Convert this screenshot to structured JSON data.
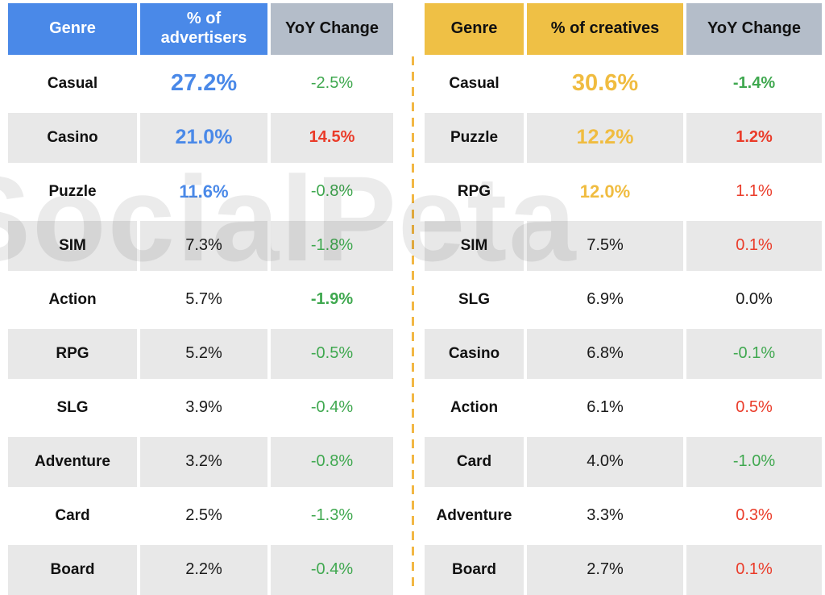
{
  "colors": {
    "blue": "#4a89e8",
    "gold": "#f0bc40",
    "yellow_header": "#efc045",
    "header_gray": "#b4bdc9",
    "row_gray": "#e8e8e8",
    "green": "#3fa84f",
    "red": "#ea3b29",
    "dash_gold": "#f2b744"
  },
  "watermark": {
    "text": "SocialPeta"
  },
  "left_table": {
    "headers": [
      "Genre",
      "% of advertisers",
      "YoY Change"
    ],
    "rows": [
      {
        "genre": "Casual",
        "value": "27.2%",
        "value_style": "blue xl",
        "yoy": "-2.5%",
        "yoy_style": "green"
      },
      {
        "genre": "Casino",
        "value": "21.0%",
        "value_style": "blue lg",
        "yoy": "14.5%",
        "yoy_style": "red bold"
      },
      {
        "genre": "Puzzle",
        "value": "11.6%",
        "value_style": "blue md",
        "yoy": "-0.8%",
        "yoy_style": "green"
      },
      {
        "genre": "SIM",
        "value": "7.3%",
        "value_style": "",
        "yoy": "-1.8%",
        "yoy_style": "green"
      },
      {
        "genre": "Action",
        "value": "5.7%",
        "value_style": "",
        "yoy": "-1.9%",
        "yoy_style": "green bold"
      },
      {
        "genre": "RPG",
        "value": "5.2%",
        "value_style": "",
        "yoy": "-0.5%",
        "yoy_style": "green"
      },
      {
        "genre": "SLG",
        "value": "3.9%",
        "value_style": "",
        "yoy": "-0.4%",
        "yoy_style": "green"
      },
      {
        "genre": "Adventure",
        "value": "3.2%",
        "value_style": "",
        "yoy": "-0.8%",
        "yoy_style": "green"
      },
      {
        "genre": "Card",
        "value": "2.5%",
        "value_style": "",
        "yoy": "-1.3%",
        "yoy_style": "green"
      },
      {
        "genre": "Board",
        "value": "2.2%",
        "value_style": "",
        "yoy": "-0.4%",
        "yoy_style": "green"
      }
    ]
  },
  "right_table": {
    "headers": [
      "Genre",
      "% of creatives",
      "YoY Change"
    ],
    "rows": [
      {
        "genre": "Casual",
        "value": "30.6%",
        "value_style": "gold xl",
        "yoy": "-1.4%",
        "yoy_style": "green bold"
      },
      {
        "genre": "Puzzle",
        "value": "12.2%",
        "value_style": "gold lg",
        "yoy": "1.2%",
        "yoy_style": "red bold"
      },
      {
        "genre": "RPG",
        "value": "12.0%",
        "value_style": "gold md",
        "yoy": "1.1%",
        "yoy_style": "red"
      },
      {
        "genre": "SIM",
        "value": "7.5%",
        "value_style": "",
        "yoy": "0.1%",
        "yoy_style": "red"
      },
      {
        "genre": "SLG",
        "value": "6.9%",
        "value_style": "",
        "yoy": "0.0%",
        "yoy_style": ""
      },
      {
        "genre": "Casino",
        "value": "6.8%",
        "value_style": "",
        "yoy": "-0.1%",
        "yoy_style": "green"
      },
      {
        "genre": "Action",
        "value": "6.1%",
        "value_style": "",
        "yoy": "0.5%",
        "yoy_style": "red"
      },
      {
        "genre": "Card",
        "value": "4.0%",
        "value_style": "",
        "yoy": "-1.0%",
        "yoy_style": "green"
      },
      {
        "genre": "Adventure",
        "value": "3.3%",
        "value_style": "",
        "yoy": "0.3%",
        "yoy_style": "red"
      },
      {
        "genre": "Board",
        "value": "2.7%",
        "value_style": "",
        "yoy": "0.1%",
        "yoy_style": "red"
      }
    ]
  },
  "chart_data": [
    {
      "type": "table",
      "title": "% of advertisers by genre",
      "columns": [
        "Genre",
        "% of advertisers",
        "YoY Change"
      ],
      "rows": [
        [
          "Casual",
          27.2,
          -2.5
        ],
        [
          "Casino",
          21.0,
          14.5
        ],
        [
          "Puzzle",
          11.6,
          -0.8
        ],
        [
          "SIM",
          7.3,
          -1.8
        ],
        [
          "Action",
          5.7,
          -1.9
        ],
        [
          "RPG",
          5.2,
          -0.5
        ],
        [
          "SLG",
          3.9,
          -0.4
        ],
        [
          "Adventure",
          3.2,
          -0.8
        ],
        [
          "Card",
          2.5,
          -1.3
        ],
        [
          "Board",
          2.2,
          -0.4
        ]
      ]
    },
    {
      "type": "table",
      "title": "% of creatives by genre",
      "columns": [
        "Genre",
        "% of creatives",
        "YoY Change"
      ],
      "rows": [
        [
          "Casual",
          30.6,
          -1.4
        ],
        [
          "Puzzle",
          12.2,
          1.2
        ],
        [
          "RPG",
          12.0,
          1.1
        ],
        [
          "SIM",
          7.5,
          0.1
        ],
        [
          "SLG",
          6.9,
          0.0
        ],
        [
          "Casino",
          6.8,
          -0.1
        ],
        [
          "Action",
          6.1,
          0.5
        ],
        [
          "Card",
          4.0,
          -1.0
        ],
        [
          "Adventure",
          3.3,
          0.3
        ],
        [
          "Board",
          2.7,
          0.1
        ]
      ]
    }
  ]
}
